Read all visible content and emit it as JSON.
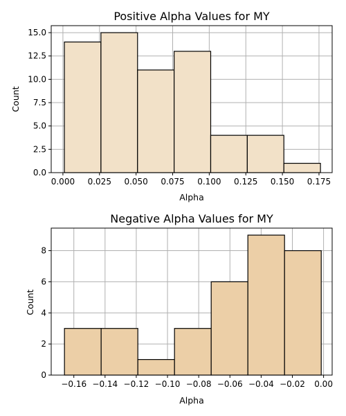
{
  "chart_data": [
    {
      "type": "bar",
      "title": "Positive Alpha Values for MY",
      "xlabel": "Alpha",
      "ylabel": "Count",
      "grid": true,
      "bar_color": "#f2e1c8",
      "bin_edges": [
        0.001,
        0.026,
        0.051,
        0.076,
        0.101,
        0.126,
        0.151,
        0.176
      ],
      "values": [
        14,
        15,
        11,
        13,
        4,
        4,
        1
      ],
      "xlim": [
        -0.008,
        0.184
      ],
      "ylim": [
        0,
        15.75
      ],
      "xticks": [
        0.0,
        0.025,
        0.05,
        0.075,
        0.1,
        0.125,
        0.15,
        0.175
      ],
      "xtick_labels": [
        "0.000",
        "0.025",
        "0.050",
        "0.075",
        "0.100",
        "0.125",
        "0.150",
        "0.175"
      ],
      "yticks": [
        0.0,
        2.5,
        5.0,
        7.5,
        10.0,
        12.5,
        15.0
      ],
      "ytick_labels": [
        "0.0",
        "2.5",
        "5.0",
        "7.5",
        "10.0",
        "12.5",
        "15.0"
      ]
    },
    {
      "type": "bar",
      "title": "Negative Alpha Values for MY",
      "xlabel": "Alpha",
      "ylabel": "Count",
      "grid": true,
      "bar_color": "#eccfa7",
      "bin_edges": [
        -0.166,
        -0.1425,
        -0.119,
        -0.0955,
        -0.072,
        -0.0485,
        -0.025,
        -0.0015
      ],
      "values": [
        3,
        3,
        1,
        3,
        6,
        9,
        8
      ],
      "xlim": [
        -0.1745,
        0.0055
      ],
      "ylim": [
        0,
        9.45
      ],
      "xticks": [
        -0.16,
        -0.14,
        -0.12,
        -0.1,
        -0.08,
        -0.06,
        -0.04,
        -0.02,
        0.0
      ],
      "xtick_labels": [
        "−0.16",
        "−0.14",
        "−0.12",
        "−0.10",
        "−0.08",
        "−0.06",
        "−0.04",
        "−0.02",
        "0.00"
      ],
      "yticks": [
        0,
        2,
        4,
        6,
        8
      ],
      "ytick_labels": [
        "0",
        "2",
        "4",
        "6",
        "8"
      ]
    }
  ]
}
